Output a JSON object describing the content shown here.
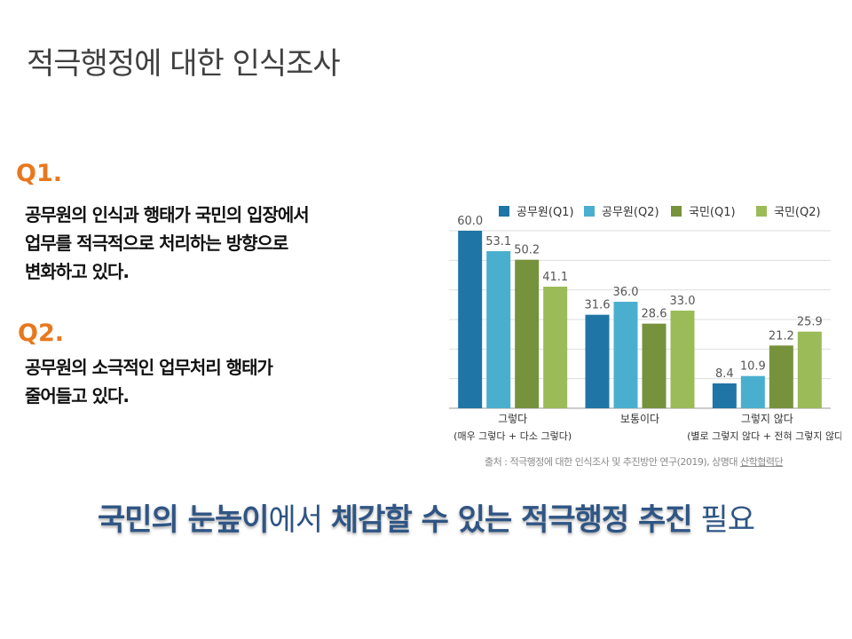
{
  "slide": {
    "title": "적극행정에 대한 인식조사",
    "q1": {
      "label": "Q1.",
      "text": "공무원의 인식과 행태가 국민의 입장에서\n업무를 적극적으로 처리하는 방향으로\n변화하고 있다."
    },
    "q2": {
      "label": "Q2.",
      "text": "공무원의 소극적인 업무처리 행태가\n줄어들고 있다."
    },
    "source": "출처 : 적극행정에 대한 인식조사 및 추진방안 연구(2019), 상명대 ",
    "source_org": "산학협력단",
    "banner": {
      "part1": "국민의 눈높이",
      "part2": "에서 ",
      "part3": "체감할 수 있는 적극행정 추진",
      "part4": " 필요"
    }
  },
  "chart_data": {
    "type": "bar",
    "title": "",
    "categories": [
      "그렇다",
      "보통이다",
      "그렇지 않다"
    ],
    "category_sublabels": [
      "(매우 그렇다 + 다소 그렇다)",
      "",
      "(별로 그렇지 않다 + 전혀 그렇지 않다)"
    ],
    "series": [
      {
        "name": "공무원(Q1)",
        "color": "#1f75a6",
        "values": [
          60.0,
          31.6,
          8.4
        ]
      },
      {
        "name": "공무원(Q2)",
        "color": "#4aafcf",
        "values": [
          53.1,
          36.0,
          10.9
        ]
      },
      {
        "name": "국민(Q1)",
        "color": "#76923c",
        "values": [
          50.2,
          28.6,
          21.2
        ]
      },
      {
        "name": "국민(Q2)",
        "color": "#9bbb59",
        "values": [
          41.1,
          33.0,
          25.9
        ]
      }
    ],
    "ylim": [
      0,
      60
    ],
    "grid": true,
    "legend": "top"
  }
}
